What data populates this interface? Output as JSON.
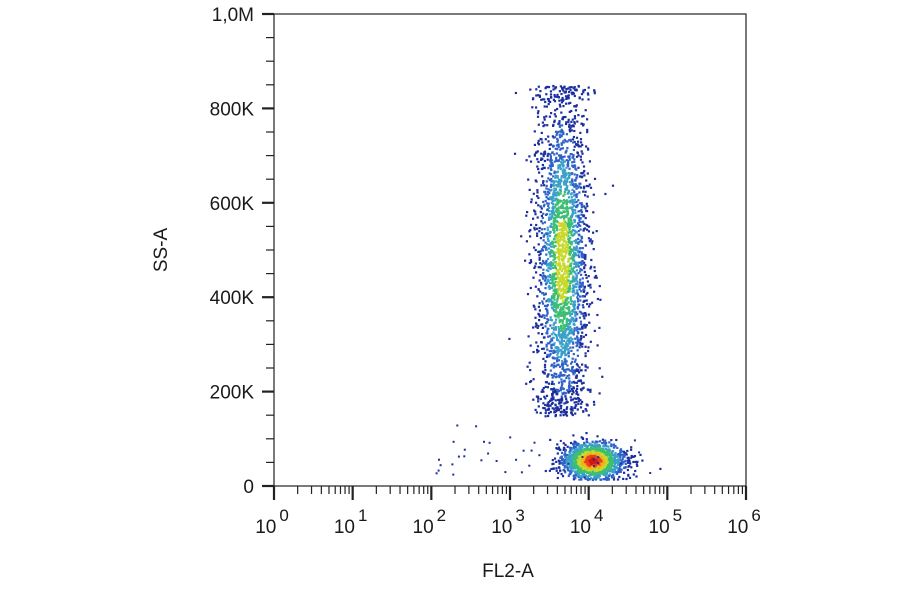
{
  "chart_data": {
    "type": "scatter",
    "subtype": "flow-cytometry-density-dot-plot",
    "title": "",
    "xlabel": "FL2-A",
    "ylabel": "SS-A",
    "x_scale": "log",
    "xlim": [
      1,
      1000000
    ],
    "ylim": [
      0,
      1000000
    ],
    "x_ticks": [
      {
        "value": 1,
        "base": "10",
        "exp": "0"
      },
      {
        "value": 10,
        "base": "10",
        "exp": "1"
      },
      {
        "value": 100,
        "base": "10",
        "exp": "2"
      },
      {
        "value": 1000,
        "base": "10",
        "exp": "3"
      },
      {
        "value": 10000,
        "base": "10",
        "exp": "4"
      },
      {
        "value": 100000,
        "base": "10",
        "exp": "5"
      },
      {
        "value": 1000000,
        "base": "10",
        "exp": "6"
      }
    ],
    "y_ticks": [
      {
        "value": 0,
        "label": "0"
      },
      {
        "value": 200000,
        "label": "200K"
      },
      {
        "value": 400000,
        "label": "400K"
      },
      {
        "value": 600000,
        "label": "600K"
      },
      {
        "value": 800000,
        "label": "800K"
      },
      {
        "value": 1000000,
        "label": "1,0M"
      }
    ],
    "grid": false,
    "legend": "none",
    "populations": [
      {
        "description": "high side-scatter cluster",
        "x_center": 4500,
        "x_log_spread": 0.17,
        "y_range": [
          150000,
          850000
        ],
        "y_peak": 480000,
        "share": 0.62
      },
      {
        "description": "low side-scatter cluster",
        "x_center": 11000,
        "x_log_spread": 0.2,
        "y_range": [
          15000,
          120000
        ],
        "y_peak": 55000,
        "share": 0.38
      }
    ],
    "density_colors": [
      "#1c2f9e",
      "#2f62c8",
      "#3aa0c9",
      "#3dbf72",
      "#c9d92c",
      "#f2b01b",
      "#e8401c",
      "#d4160f"
    ]
  }
}
